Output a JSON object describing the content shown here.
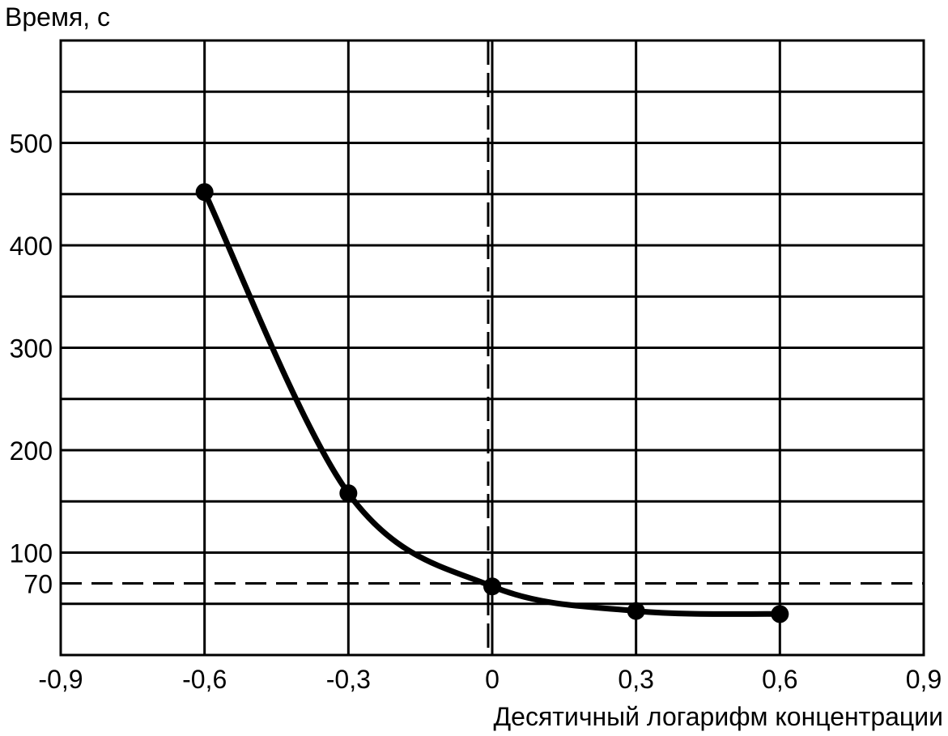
{
  "chart_data": {
    "type": "line",
    "ylabel": "Время, с",
    "xlabel": "Десятичный логарифм концентрации",
    "xlim": [
      -0.9,
      0.9
    ],
    "ylim": [
      0,
      600
    ],
    "x_ticks": [
      {
        "value": -0.9,
        "label": "-0,9"
      },
      {
        "value": -0.6,
        "label": "-0,6"
      },
      {
        "value": -0.3,
        "label": "-0,3"
      },
      {
        "value": 0,
        "label": "0"
      },
      {
        "value": 0.3,
        "label": "0,3"
      },
      {
        "value": 0.6,
        "label": "0,6"
      },
      {
        "value": 0.9,
        "label": "0,9"
      }
    ],
    "y_ticks": [
      {
        "value": 500,
        "label": "500"
      },
      {
        "value": 400,
        "label": "400"
      },
      {
        "value": 300,
        "label": "300"
      },
      {
        "value": 200,
        "label": "200"
      },
      {
        "value": 100,
        "label": "100"
      },
      {
        "value": 70,
        "label": "70"
      }
    ],
    "x_grid": [
      -0.6,
      -0.3,
      0,
      0.3,
      0.6
    ],
    "y_grid": [
      50,
      100,
      150,
      200,
      250,
      300,
      350,
      400,
      450,
      500,
      550
    ],
    "reference_lines": {
      "horizontal": [
        70
      ],
      "vertical": [
        0
      ]
    },
    "grid": true,
    "series": [
      {
        "x": [
          -0.6,
          -0.3,
          0,
          0.3,
          0.6
        ],
        "y": [
          452,
          158,
          67,
          43,
          40
        ]
      }
    ]
  }
}
